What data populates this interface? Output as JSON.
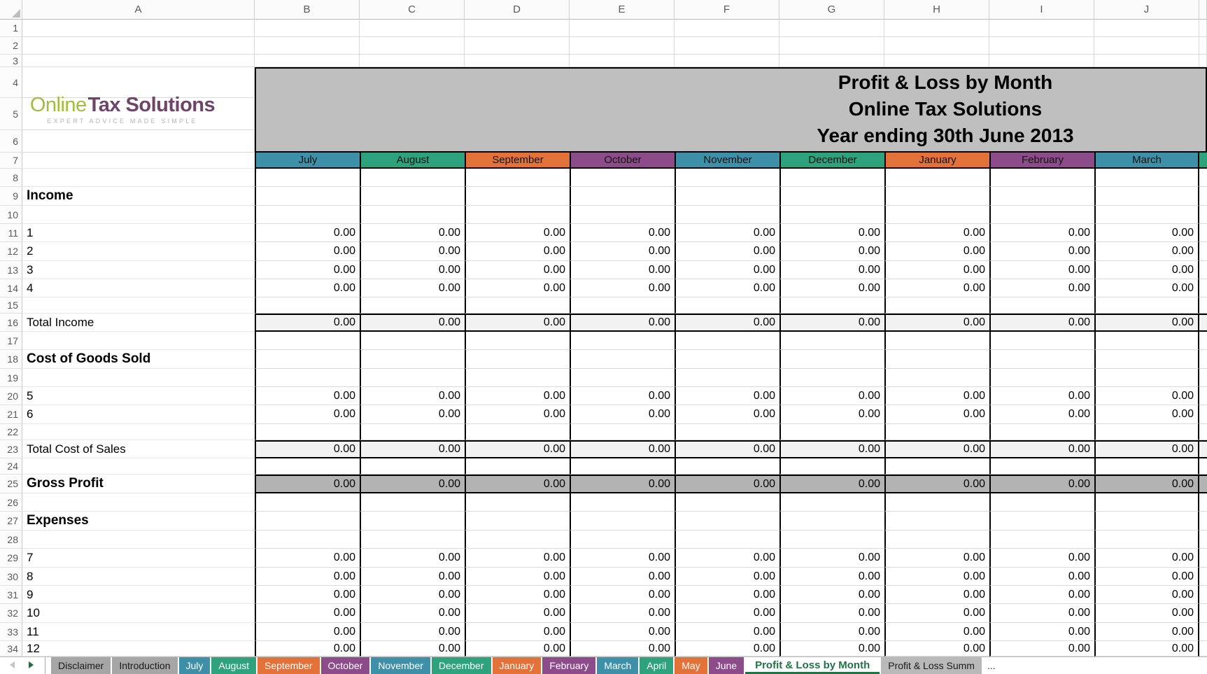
{
  "grid": {
    "column_letters": [
      "A",
      "B",
      "C",
      "D",
      "E",
      "F",
      "G",
      "H",
      "I",
      "J"
    ],
    "row_numbers": [
      "1",
      "2",
      "3",
      "4",
      "5",
      "6",
      "7",
      "8",
      "9",
      "10",
      "11",
      "12",
      "13",
      "14",
      "15",
      "16",
      "17",
      "18",
      "19",
      "20",
      "21",
      "22",
      "23",
      "24",
      "25",
      "26",
      "27",
      "28",
      "29",
      "30",
      "31",
      "32",
      "33",
      "34"
    ],
    "cell_value": "0.00",
    "months": [
      {
        "label": "July",
        "color": "#3E90A8"
      },
      {
        "label": "August",
        "color": "#2EA17D"
      },
      {
        "label": "September",
        "color": "#E2713A"
      },
      {
        "label": "October",
        "color": "#8C4C8A"
      },
      {
        "label": "November",
        "color": "#3E90A8"
      },
      {
        "label": "December",
        "color": "#2EA17D"
      },
      {
        "label": "January",
        "color": "#E2713A"
      },
      {
        "label": "February",
        "color": "#8C4C8A"
      },
      {
        "label": "March",
        "color": "#3E90A8"
      }
    ],
    "next_month_sliver_color": "#2EA17D",
    "body_rows": [
      {
        "n": 8,
        "label": "",
        "style": "blank"
      },
      {
        "n": 9,
        "label": "Income",
        "style": "section"
      },
      {
        "n": 10,
        "label": "",
        "style": "blank"
      },
      {
        "n": 11,
        "label": "1",
        "style": "data"
      },
      {
        "n": 12,
        "label": "2",
        "style": "data"
      },
      {
        "n": 13,
        "label": "3",
        "style": "data"
      },
      {
        "n": 14,
        "label": "4",
        "style": "data"
      },
      {
        "n": 15,
        "label": "",
        "style": "blank"
      },
      {
        "n": 16,
        "label": "Total Income",
        "style": "total"
      },
      {
        "n": 17,
        "label": "",
        "style": "blank"
      },
      {
        "n": 18,
        "label": "Cost of Goods Sold",
        "style": "section"
      },
      {
        "n": 19,
        "label": "",
        "style": "blank"
      },
      {
        "n": 20,
        "label": "5",
        "style": "data"
      },
      {
        "n": 21,
        "label": "6",
        "style": "data"
      },
      {
        "n": 22,
        "label": "",
        "style": "blank"
      },
      {
        "n": 23,
        "label": "Total Cost of Sales",
        "style": "total"
      },
      {
        "n": 24,
        "label": "",
        "style": "blank"
      },
      {
        "n": 25,
        "label": "Gross Profit",
        "style": "grand_total"
      },
      {
        "n": 26,
        "label": "",
        "style": "blank"
      },
      {
        "n": 27,
        "label": "Expenses",
        "style": "section"
      },
      {
        "n": 28,
        "label": "",
        "style": "blank"
      },
      {
        "n": 29,
        "label": "7",
        "style": "data"
      },
      {
        "n": 30,
        "label": "8",
        "style": "data"
      },
      {
        "n": 31,
        "label": "9",
        "style": "data"
      },
      {
        "n": 32,
        "label": "10",
        "style": "data"
      },
      {
        "n": 33,
        "label": "11",
        "style": "data"
      },
      {
        "n": 34,
        "label": "12",
        "style": "data"
      }
    ]
  },
  "logo": {
    "part1": "Online",
    "part2": "Tax Solutions",
    "tagline": "EXPERT ADVICE MADE SIMPLE"
  },
  "title_block": {
    "line1": "Profit & Loss by Month",
    "line2": "Online Tax Solutions",
    "line3": "Year ending 30th June 2013",
    "background": "#BFBFBF"
  },
  "styles": {
    "total_fill": "#F2F2F2",
    "grand_total_fill": "#B3B3B3",
    "accent_green": "#217346",
    "gridline": "#D9D9D9"
  },
  "tabs": {
    "items": [
      {
        "label": "Disclaimer",
        "color": "#A6A6A6",
        "text": "#1A1A1A"
      },
      {
        "label": "Introduction",
        "color": "#A6A6A6",
        "text": "#1A1A1A"
      },
      {
        "label": "July",
        "color": "#3E90A8",
        "text": "#FFFFFF"
      },
      {
        "label": "August",
        "color": "#2EA17D",
        "text": "#FFFFFF"
      },
      {
        "label": "September",
        "color": "#E2713A",
        "text": "#FFFFFF"
      },
      {
        "label": "October",
        "color": "#8C4C8A",
        "text": "#FFFFFF"
      },
      {
        "label": "November",
        "color": "#3E90A8",
        "text": "#FFFFFF"
      },
      {
        "label": "December",
        "color": "#2EA17D",
        "text": "#FFFFFF"
      },
      {
        "label": "January",
        "color": "#E2713A",
        "text": "#FFFFFF"
      },
      {
        "label": "February",
        "color": "#8C4C8A",
        "text": "#FFFFFF"
      },
      {
        "label": "March",
        "color": "#3E90A8",
        "text": "#FFFFFF"
      },
      {
        "label": "April",
        "color": "#2EA17D",
        "text": "#FFFFFF"
      },
      {
        "label": "May",
        "color": "#E2713A",
        "text": "#FFFFFF"
      },
      {
        "label": "June",
        "color": "#8C4C8A",
        "text": "#FFFFFF"
      },
      {
        "label": "Profit & Loss by Month",
        "active": true
      },
      {
        "label": "Profit & Loss Summ",
        "color": "#B9B9B9",
        "text": "#1A1A1A"
      }
    ],
    "overflow": "..."
  }
}
